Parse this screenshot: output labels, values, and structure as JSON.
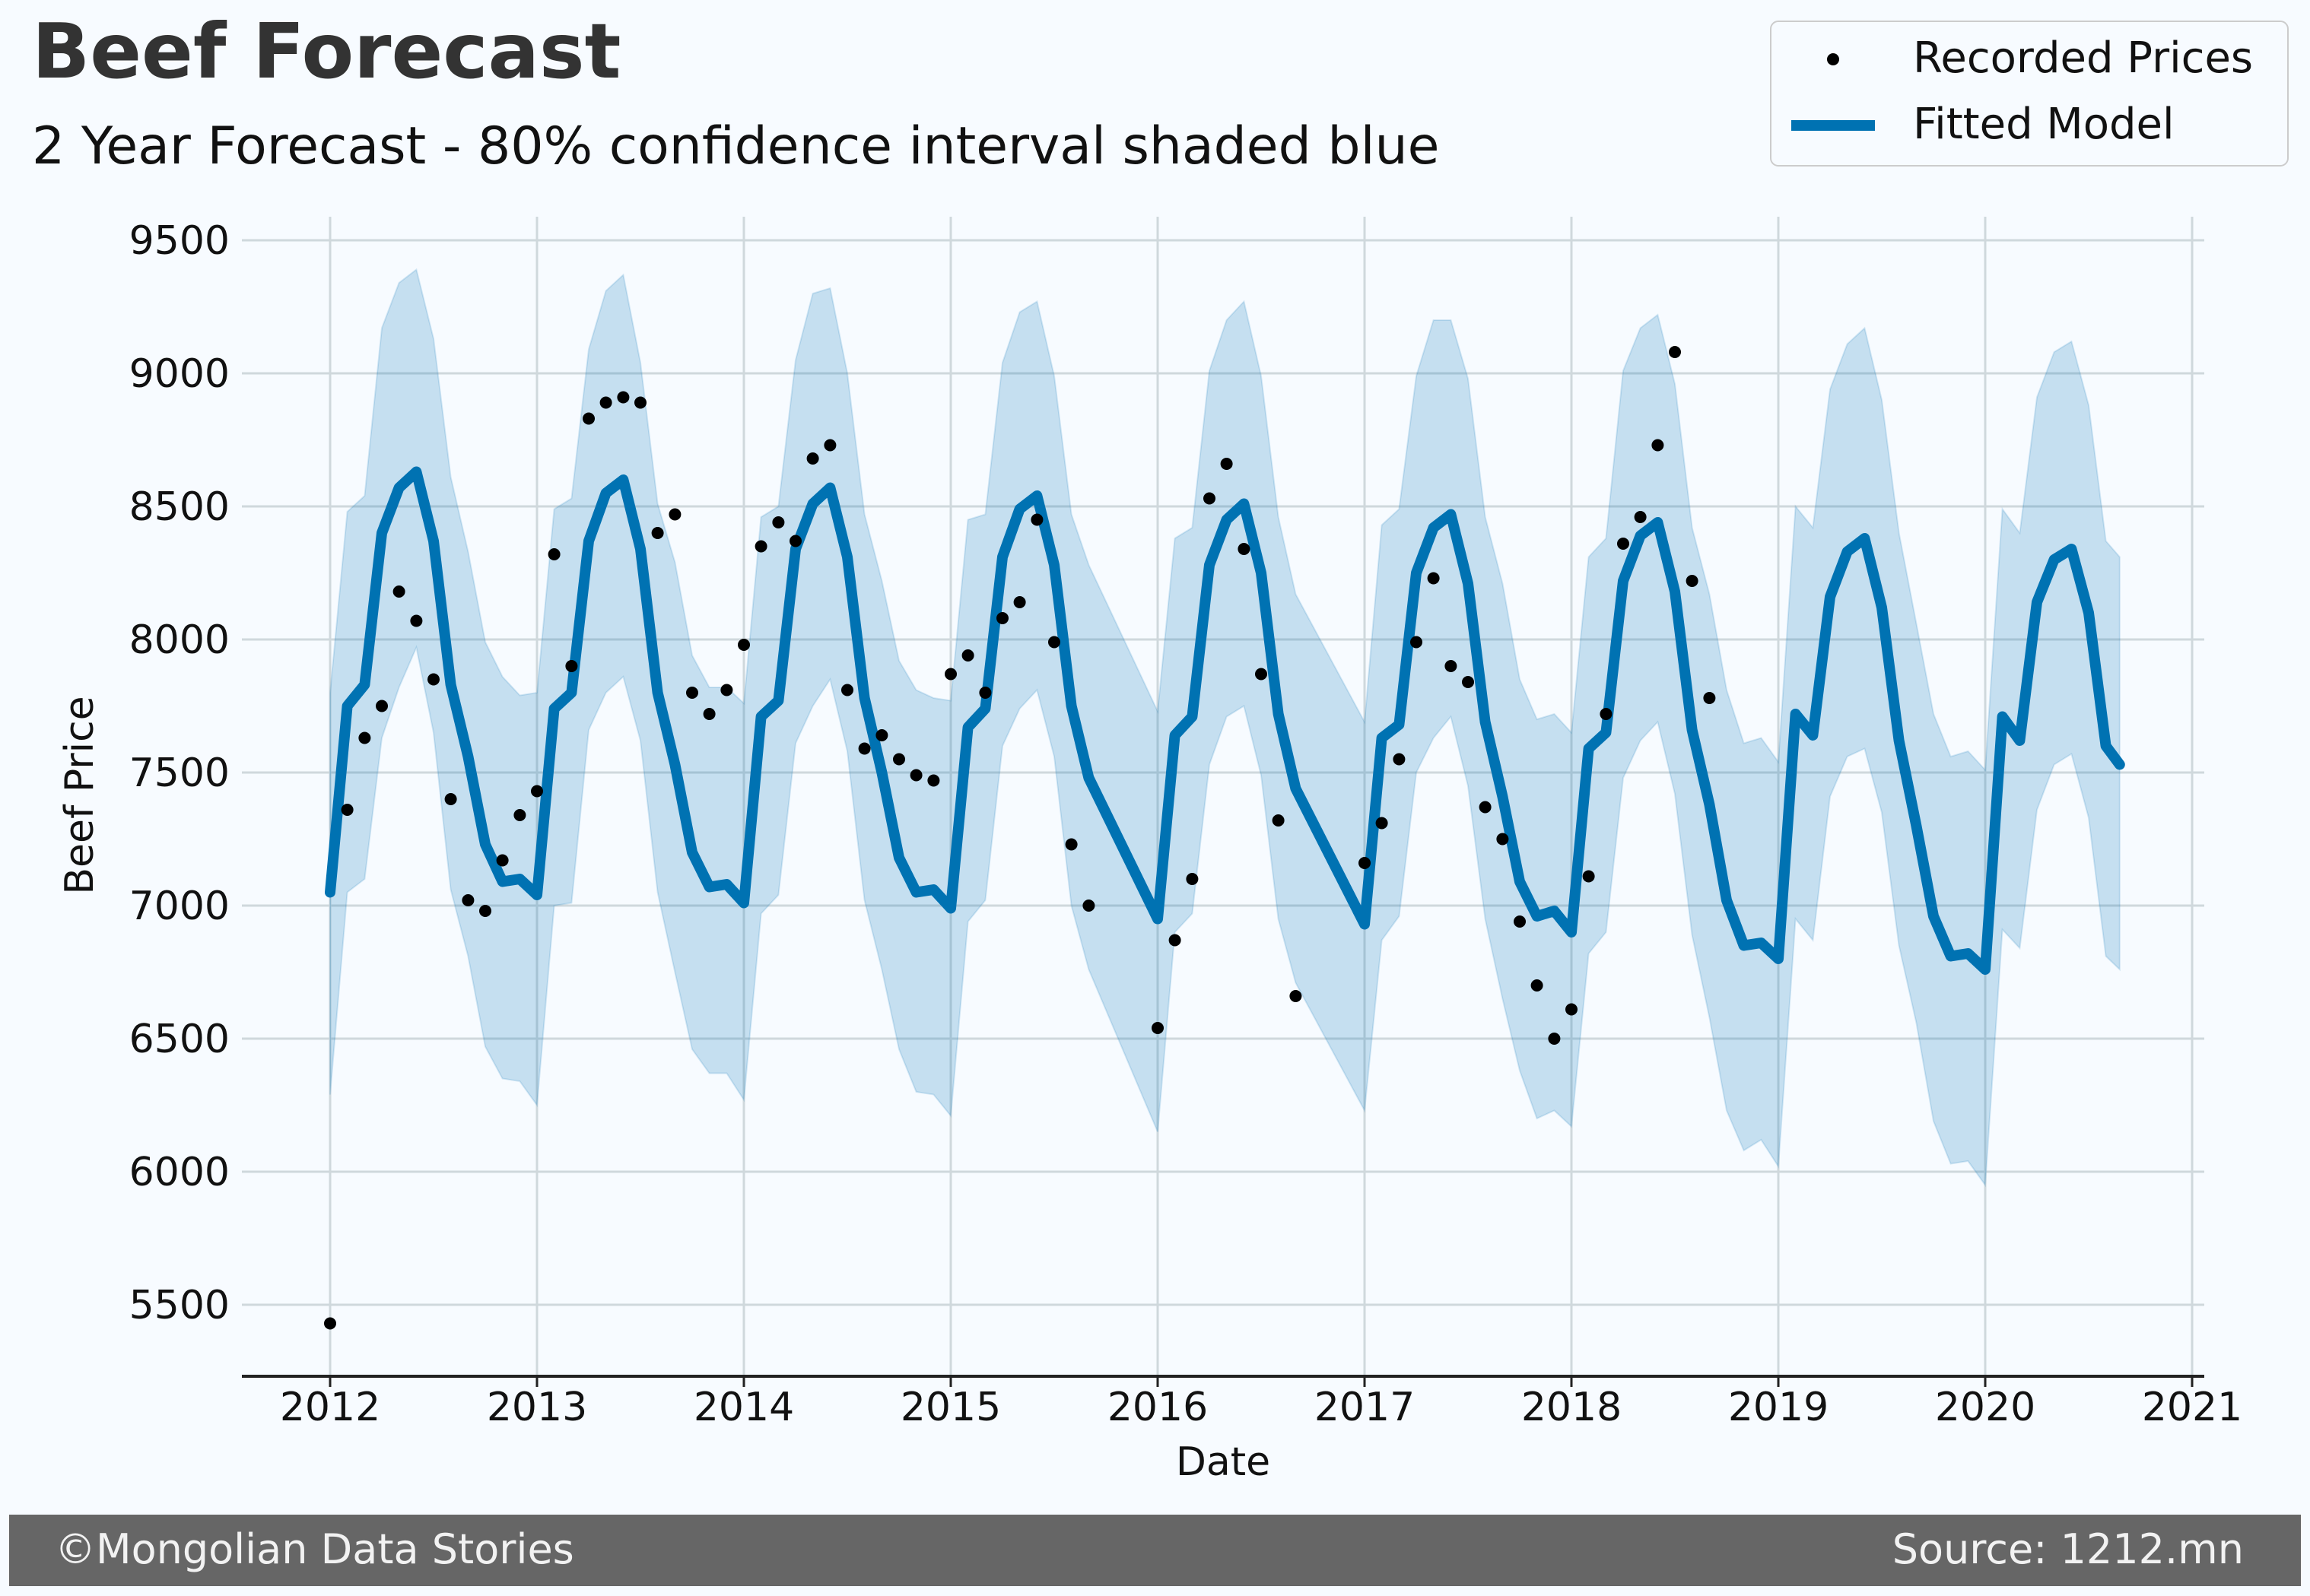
{
  "chart_data": {
    "type": "line",
    "title": "Beef Forecast",
    "subtitle": "2 Year Forecast - 80% confidence interval shaded blue",
    "xlabel": "Date",
    "ylabel": "Beef Price",
    "xlim": [
      2011.6,
      2021.1
    ],
    "ylim": [
      5250,
      9650
    ],
    "x_ticks": [
      2012,
      2013,
      2014,
      2015,
      2016,
      2017,
      2018,
      2019,
      2020,
      2021
    ],
    "x_tick_labels": [
      "2012",
      "2013",
      "2014",
      "2015",
      "2016",
      "2017",
      "2018",
      "2019",
      "2020",
      "2021"
    ],
    "y_ticks": [
      5500,
      6000,
      6500,
      7000,
      7500,
      8000,
      8500,
      9000,
      9500
    ],
    "y_tick_labels": [
      "5500",
      "6000",
      "6500",
      "7000",
      "7500",
      "8000",
      "8500",
      "9000",
      "9500"
    ],
    "grid": true,
    "legend": {
      "position": "top-right",
      "entries": [
        "Recorded Prices",
        "Fitted Model"
      ]
    },
    "colors": {
      "points": "#000000",
      "model": "#0072b2",
      "interval": "#0072b2"
    },
    "series": [
      {
        "name": "Recorded Prices",
        "kind": "scatter",
        "x": [
          2012.0,
          2012.083,
          2012.167,
          2012.25,
          2012.333,
          2012.417,
          2012.5,
          2012.583,
          2012.667,
          2012.75,
          2012.833,
          2012.917,
          2013.0,
          2013.083,
          2013.167,
          2013.25,
          2013.333,
          2013.417,
          2013.5,
          2013.583,
          2013.667,
          2013.75,
          2013.833,
          2013.917,
          2014.0,
          2014.083,
          2014.167,
          2014.25,
          2014.333,
          2014.417,
          2014.5,
          2014.583,
          2014.667,
          2014.75,
          2014.833,
          2014.917,
          2015.0,
          2015.083,
          2015.167,
          2015.25,
          2015.333,
          2015.417,
          2015.5,
          2015.583,
          2015.667,
          2016.0,
          2016.083,
          2016.167,
          2016.25,
          2016.333,
          2016.417,
          2016.5,
          2016.583,
          2016.667,
          2017.0,
          2017.083,
          2017.167,
          2017.25,
          2017.333,
          2017.417,
          2017.5,
          2017.583,
          2017.667,
          2017.75,
          2017.833,
          2017.917,
          2018.0,
          2018.083,
          2018.167,
          2018.25,
          2018.333,
          2018.417,
          2018.5,
          2018.583,
          2018.667
        ],
        "y": [
          5430,
          7360,
          7630,
          7750,
          8180,
          8070,
          7850,
          7400,
          7020,
          6980,
          7170,
          7340,
          7430,
          8320,
          7900,
          8830,
          8890,
          8910,
          8890,
          8400,
          8470,
          7800,
          7720,
          7810,
          7980,
          8350,
          8440,
          8370,
          8680,
          8730,
          7810,
          7590,
          7640,
          7550,
          7490,
          7470,
          7870,
          7940,
          7800,
          8080,
          8140,
          8450,
          7990,
          7230,
          7000,
          6540,
          6870,
          7100,
          8530,
          8660,
          8340,
          7870,
          7320,
          6660,
          7160,
          7310,
          7550,
          7990,
          8230,
          7900,
          7840,
          7370,
          7250,
          6940,
          6700,
          6500,
          6610,
          7110,
          7720,
          8360,
          8460,
          8730,
          9080,
          8220,
          7780
        ]
      },
      {
        "name": "Fitted Model",
        "kind": "line",
        "x": [
          2012.0,
          2012.083,
          2012.167,
          2012.25,
          2012.333,
          2012.417,
          2012.5,
          2012.583,
          2012.667,
          2012.75,
          2012.833,
          2012.917,
          2013.0,
          2013.083,
          2013.167,
          2013.25,
          2013.333,
          2013.417,
          2013.5,
          2013.583,
          2013.667,
          2013.75,
          2013.833,
          2013.917,
          2014.0,
          2014.083,
          2014.167,
          2014.25,
          2014.333,
          2014.417,
          2014.5,
          2014.583,
          2014.667,
          2014.75,
          2014.833,
          2014.917,
          2015.0,
          2015.083,
          2015.167,
          2015.25,
          2015.333,
          2015.417,
          2015.5,
          2015.583,
          2015.667,
          2016.0,
          2016.083,
          2016.167,
          2016.25,
          2016.333,
          2016.417,
          2016.5,
          2016.583,
          2016.667,
          2017.0,
          2017.083,
          2017.167,
          2017.25,
          2017.333,
          2017.417,
          2017.5,
          2017.583,
          2017.667,
          2017.75,
          2017.833,
          2017.917,
          2018.0,
          2018.083,
          2018.167,
          2018.25,
          2018.333,
          2018.417,
          2018.5,
          2018.583,
          2018.667,
          2018.75,
          2018.833,
          2018.917,
          2019.0,
          2019.083,
          2019.167,
          2019.25,
          2019.333,
          2019.417,
          2019.5,
          2019.583,
          2019.667,
          2019.75,
          2019.833,
          2019.917,
          2020.0,
          2020.083,
          2020.167,
          2020.25,
          2020.333,
          2020.417,
          2020.5,
          2020.583,
          2020.65
        ],
        "y": [
          7050,
          7750,
          7830,
          8400,
          8570,
          8630,
          8370,
          7830,
          7560,
          7230,
          7090,
          7100,
          7040,
          7740,
          7800,
          8370,
          8550,
          8600,
          8340,
          7800,
          7530,
          7200,
          7070,
          7080,
          7010,
          7710,
          7770,
          8340,
          8510,
          8570,
          8310,
          7780,
          7500,
          7180,
          7050,
          7060,
          6990,
          7670,
          7740,
          8310,
          8490,
          8540,
          8280,
          7750,
          7480,
          6950,
          7640,
          7710,
          8280,
          8450,
          8510,
          8250,
          7720,
          7440,
          6930,
          7630,
          7680,
          8250,
          8420,
          8470,
          8210,
          7690,
          7410,
          7090,
          6960,
          6980,
          6900,
          7590,
          7650,
          8220,
          8390,
          8440,
          8180,
          7660,
          7380,
          7020,
          6850,
          6860,
          6800,
          7720,
          7640,
          8160,
          8330,
          8380,
          8120,
          7620,
          7300,
          6960,
          6810,
          6820,
          6760,
          7710,
          7620,
          8140,
          8300,
          8340,
          8100,
          7600,
          7530
        ]
      }
    ],
    "interval": {
      "name": "80% confidence interval",
      "x": [
        2012.0,
        2012.083,
        2012.167,
        2012.25,
        2012.333,
        2012.417,
        2012.5,
        2012.583,
        2012.667,
        2012.75,
        2012.833,
        2012.917,
        2013.0,
        2013.083,
        2013.167,
        2013.25,
        2013.333,
        2013.417,
        2013.5,
        2013.583,
        2013.667,
        2013.75,
        2013.833,
        2013.917,
        2014.0,
        2014.083,
        2014.167,
        2014.25,
        2014.333,
        2014.417,
        2014.5,
        2014.583,
        2014.667,
        2014.75,
        2014.833,
        2014.917,
        2015.0,
        2015.083,
        2015.167,
        2015.25,
        2015.333,
        2015.417,
        2015.5,
        2015.583,
        2015.667,
        2016.0,
        2016.083,
        2016.167,
        2016.25,
        2016.333,
        2016.417,
        2016.5,
        2016.583,
        2016.667,
        2017.0,
        2017.083,
        2017.167,
        2017.25,
        2017.333,
        2017.417,
        2017.5,
        2017.583,
        2017.667,
        2017.75,
        2017.833,
        2017.917,
        2018.0,
        2018.083,
        2018.167,
        2018.25,
        2018.333,
        2018.417,
        2018.5,
        2018.583,
        2018.667,
        2018.75,
        2018.833,
        2018.917,
        2019.0,
        2019.083,
        2019.167,
        2019.25,
        2019.333,
        2019.417,
        2019.5,
        2019.583,
        2019.667,
        2019.75,
        2019.833,
        2019.917,
        2020.0,
        2020.083,
        2020.167,
        2020.25,
        2020.333,
        2020.417,
        2020.5,
        2020.583,
        2020.65
      ],
      "upper": [
        7800,
        8480,
        8540,
        9170,
        9340,
        9390,
        9130,
        8610,
        8330,
        7990,
        7860,
        7790,
        7800,
        8490,
        8530,
        9090,
        9310,
        9370,
        9040,
        8510,
        8290,
        7940,
        7820,
        7820,
        7760,
        8460,
        8500,
        9050,
        9300,
        9320,
        9000,
        8470,
        8220,
        7920,
        7810,
        7780,
        7770,
        8450,
        8470,
        9040,
        9230,
        9270,
        8990,
        8470,
        8280,
        7730,
        8380,
        8420,
        9010,
        9200,
        9270,
        8990,
        8460,
        8170,
        7690,
        8430,
        8490,
        8990,
        9200,
        9200,
        8980,
        8460,
        8210,
        7850,
        7700,
        7720,
        7650,
        8310,
        8380,
        9010,
        9170,
        9220,
        8960,
        8420,
        8170,
        7810,
        7610,
        7630,
        7540,
        8500,
        8420,
        8940,
        9110,
        9170,
        8900,
        8400,
        8060,
        7720,
        7560,
        7580,
        7510,
        8490,
        8400,
        8910,
        9080,
        9120,
        8880,
        8370,
        8310
      ],
      "lower": [
        6290,
        7050,
        7100,
        7630,
        7820,
        7970,
        7650,
        7060,
        6810,
        6470,
        6350,
        6340,
        6250,
        7000,
        7010,
        7660,
        7800,
        7860,
        7620,
        7050,
        6750,
        6460,
        6370,
        6370,
        6270,
        6970,
        7040,
        7610,
        7750,
        7850,
        7580,
        7020,
        6760,
        6460,
        6300,
        6290,
        6210,
        6940,
        7020,
        7600,
        7740,
        7810,
        7560,
        7000,
        6760,
        6150,
        6900,
        6970,
        7530,
        7710,
        7750,
        7490,
        6950,
        6710,
        6230,
        6870,
        6960,
        7500,
        7630,
        7710,
        7450,
        6950,
        6650,
        6380,
        6200,
        6230,
        6170,
        6820,
        6900,
        7480,
        7620,
        7690,
        7420,
        6890,
        6580,
        6230,
        6080,
        6120,
        6020,
        6950,
        6870,
        7410,
        7560,
        7590,
        7350,
        6850,
        6560,
        6190,
        6030,
        6040,
        5950,
        6910,
        6840,
        7360,
        7530,
        7570,
        7330,
        6810,
        6760
      ]
    }
  },
  "footer": {
    "left": "©Mongolian Data Stories",
    "right": "Source: 1212.mn"
  }
}
